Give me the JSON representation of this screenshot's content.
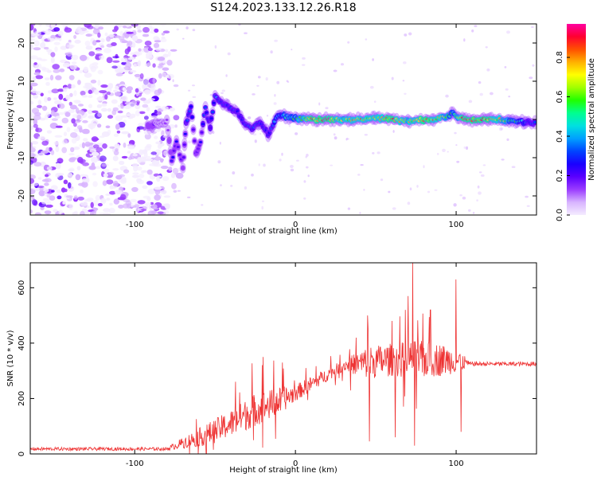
{
  "chart_data": [
    {
      "type": "heatmap",
      "title": "S124.2023.133.12.26.R18",
      "xlabel": "Height of straight line (km)",
      "ylabel": "Frequency (Hz)",
      "xlim": [
        -165,
        150
      ],
      "ylim": [
        -25,
        25
      ],
      "x_ticks": [
        -100,
        0,
        100
      ],
      "y_ticks": [
        -20,
        -10,
        0,
        10,
        20
      ],
      "colorbar": {
        "label": "Normalized spectral amplitude",
        "range": [
          0,
          0.97
        ],
        "ticks": [
          0.0,
          0.2,
          0.4,
          0.6,
          0.8
        ],
        "colors": [
          "#f4ecff",
          "#d8b4ff",
          "#9a3cff",
          "#5a00ff",
          "#1a00ff",
          "#0044ff",
          "#00a0ff",
          "#00e0e0",
          "#00ff90",
          "#20ff00",
          "#a0ff00",
          "#ffff00",
          "#ffb000",
          "#ff5000",
          "#ff0030",
          "#ff00a0"
        ]
      },
      "noise_region_x": [
        -165,
        -80
      ],
      "ridge": [
        {
          "x": -92,
          "f": -1.5,
          "a": 0.18
        },
        {
          "x": -85,
          "f": -1.2,
          "a": 0.15
        },
        {
          "x": -80,
          "f": -0.5,
          "a": 0.12
        },
        {
          "x": -77,
          "f": -11.0,
          "a": 0.22
        },
        {
          "x": -74,
          "f": -5.5,
          "a": 0.25
        },
        {
          "x": -70,
          "f": -12.5,
          "a": 0.2
        },
        {
          "x": -68,
          "f": -1.0,
          "a": 0.28
        },
        {
          "x": -65,
          "f": 3.5,
          "a": 0.3
        },
        {
          "x": -62,
          "f": -9.0,
          "a": 0.22
        },
        {
          "x": -59,
          "f": -6.0,
          "a": 0.25
        },
        {
          "x": -56,
          "f": 3.0,
          "a": 0.3
        },
        {
          "x": -53,
          "f": -2.0,
          "a": 0.28
        },
        {
          "x": -50,
          "f": 6.0,
          "a": 0.35
        },
        {
          "x": -46,
          "f": 4.5,
          "a": 0.32
        },
        {
          "x": -41,
          "f": 3.0,
          "a": 0.3
        },
        {
          "x": -36,
          "f": 2.0,
          "a": 0.3
        },
        {
          "x": -32,
          "f": -1.0,
          "a": 0.28
        },
        {
          "x": -27,
          "f": -2.5,
          "a": 0.32
        },
        {
          "x": -22,
          "f": -0.5,
          "a": 0.35
        },
        {
          "x": -17,
          "f": -4.0,
          "a": 0.3
        },
        {
          "x": -12,
          "f": 0.5,
          "a": 0.4
        },
        {
          "x": -7,
          "f": 1.0,
          "a": 0.5
        },
        {
          "x": 0,
          "f": 0.3,
          "a": 0.55
        },
        {
          "x": 10,
          "f": 0.0,
          "a": 0.85
        },
        {
          "x": 20,
          "f": 0.0,
          "a": 0.9
        },
        {
          "x": 30,
          "f": 0.0,
          "a": 0.7
        },
        {
          "x": 40,
          "f": 0.0,
          "a": 0.8
        },
        {
          "x": 50,
          "f": 0.2,
          "a": 0.75
        },
        {
          "x": 60,
          "f": 0.0,
          "a": 0.85
        },
        {
          "x": 70,
          "f": -0.5,
          "a": 0.7
        },
        {
          "x": 80,
          "f": 0.0,
          "a": 0.85
        },
        {
          "x": 90,
          "f": 0.3,
          "a": 0.75
        },
        {
          "x": 98,
          "f": 1.5,
          "a": 0.5
        },
        {
          "x": 105,
          "f": 0.0,
          "a": 0.9
        },
        {
          "x": 115,
          "f": 0.0,
          "a": 0.9
        },
        {
          "x": 125,
          "f": 0.0,
          "a": 0.75
        },
        {
          "x": 135,
          "f": -0.3,
          "a": 0.55
        },
        {
          "x": 145,
          "f": -0.8,
          "a": 0.35
        },
        {
          "x": 150,
          "f": -0.8,
          "a": 0.3
        }
      ]
    },
    {
      "type": "line",
      "xlabel": "Height of straight line (km)",
      "ylabel": "SNR (10 * v/v)",
      "xlim": [
        -165,
        150
      ],
      "ylim": [
        0,
        690
      ],
      "x_ticks": [
        -100,
        0,
        100
      ],
      "y_ticks": [
        0,
        200,
        400,
        600
      ],
      "series_color": "#ee3333",
      "envelope": [
        {
          "x": -165,
          "base": 18,
          "amp": 6
        },
        {
          "x": -80,
          "base": 18,
          "amp": 6
        },
        {
          "x": -70,
          "base": 40,
          "amp": 20
        },
        {
          "x": -55,
          "base": 70,
          "amp": 40
        },
        {
          "x": -40,
          "base": 110,
          "amp": 50
        },
        {
          "x": -25,
          "base": 160,
          "amp": 60
        },
        {
          "x": -10,
          "base": 190,
          "amp": 50
        },
        {
          "x": 0,
          "base": 220,
          "amp": 30
        },
        {
          "x": 15,
          "base": 270,
          "amp": 25
        },
        {
          "x": 30,
          "base": 320,
          "amp": 20
        },
        {
          "x": 45,
          "base": 330,
          "amp": 60
        },
        {
          "x": 60,
          "base": 340,
          "amp": 60
        },
        {
          "x": 75,
          "base": 340,
          "amp": 70
        },
        {
          "x": 90,
          "base": 340,
          "amp": 60
        },
        {
          "x": 103,
          "base": 335,
          "amp": 40
        },
        {
          "x": 108,
          "base": 325,
          "amp": 8
        },
        {
          "x": 150,
          "base": 325,
          "amp": 8
        }
      ],
      "spikes": [
        {
          "x": -20,
          "y": 350
        },
        {
          "x": -8,
          "y": 330
        },
        {
          "x": 45,
          "y": 500
        },
        {
          "x": 46,
          "y": 45
        },
        {
          "x": 60,
          "y": 480
        },
        {
          "x": 62,
          "y": 60
        },
        {
          "x": 70,
          "y": 570
        },
        {
          "x": 73,
          "y": 690
        },
        {
          "x": 74,
          "y": 30
        },
        {
          "x": 84,
          "y": 520
        },
        {
          "x": 100,
          "y": 630
        },
        {
          "x": 103,
          "y": 80
        }
      ]
    }
  ]
}
